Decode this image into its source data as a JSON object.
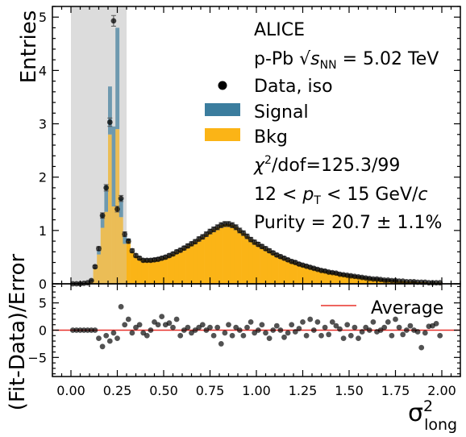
{
  "chart_data": [
    {
      "type": "bar",
      "panel": "main",
      "ylabel": "Entries",
      "xlim": [
        -0.1,
        2.1
      ],
      "ylim": [
        0,
        5.2
      ],
      "xticks": [
        "0.00",
        "0.25",
        "0.50",
        "0.75",
        "1.00",
        "1.25",
        "1.50",
        "1.75",
        "2.00"
      ],
      "yticks": [
        "0",
        "1",
        "2",
        "3",
        "4",
        "5"
      ],
      "shaded_region": [
        0.0,
        0.3
      ],
      "bin_width": 0.02,
      "bin_centers": [
        0.01,
        0.03,
        0.05,
        0.07,
        0.09,
        0.11,
        0.13,
        0.15,
        0.17,
        0.19,
        0.21,
        0.23,
        0.25,
        0.27,
        0.29,
        0.31,
        0.33,
        0.35,
        0.37,
        0.39,
        0.41,
        0.43,
        0.45,
        0.47,
        0.49,
        0.51,
        0.53,
        0.55,
        0.57,
        0.59,
        0.61,
        0.63,
        0.65,
        0.67,
        0.69,
        0.71,
        0.73,
        0.75,
        0.77,
        0.79,
        0.81,
        0.83,
        0.85,
        0.87,
        0.89,
        0.91,
        0.93,
        0.95,
        0.97,
        0.99,
        1.01,
        1.03,
        1.05,
        1.07,
        1.09,
        1.11,
        1.13,
        1.15,
        1.17,
        1.19,
        1.21,
        1.23,
        1.25,
        1.27,
        1.29,
        1.31,
        1.33,
        1.35,
        1.37,
        1.39,
        1.41,
        1.43,
        1.45,
        1.47,
        1.49,
        1.51,
        1.53,
        1.55,
        1.57,
        1.59,
        1.61,
        1.63,
        1.65,
        1.67,
        1.69,
        1.71,
        1.73,
        1.75,
        1.77,
        1.79,
        1.81,
        1.83,
        1.85,
        1.87,
        1.89,
        1.91,
        1.93,
        1.95,
        1.97,
        1.99
      ],
      "series": [
        {
          "name": "Signal",
          "color": "#3b7d9e",
          "stack": "top",
          "values": [
            0,
            0,
            0,
            0,
            0,
            0,
            0.02,
            0.08,
            0.25,
            0.5,
            0.9,
            1.5,
            1.9,
            0.35,
            0.15,
            0.05,
            0.01,
            0,
            0,
            0,
            0,
            0,
            0,
            0,
            0,
            0,
            0,
            0,
            0,
            0,
            0,
            0,
            0,
            0,
            0,
            0,
            0,
            0,
            0,
            0,
            0,
            0,
            0,
            0,
            0,
            0,
            0,
            0,
            0,
            0,
            0,
            0,
            0,
            0,
            0,
            0,
            0,
            0,
            0,
            0,
            0,
            0,
            0,
            0,
            0,
            0,
            0,
            0,
            0,
            0,
            0,
            0,
            0,
            0,
            0,
            0,
            0,
            0,
            0,
            0,
            0,
            0,
            0,
            0,
            0,
            0,
            0,
            0,
            0,
            0,
            0,
            0,
            0,
            0,
            0,
            0,
            0,
            0,
            0,
            0
          ]
        },
        {
          "name": "Bkg",
          "color": "#fbb416",
          "stack": "bottom",
          "values": [
            0,
            0,
            0,
            0.01,
            0.02,
            0.05,
            0.28,
            0.55,
            1.05,
            1.35,
            2.8,
            1.45,
            2.9,
            1.25,
            0.75,
            0.8,
            0.6,
            0.52,
            0.48,
            0.45,
            0.44,
            0.44,
            0.45,
            0.46,
            0.48,
            0.5,
            0.53,
            0.56,
            0.6,
            0.63,
            0.67,
            0.71,
            0.75,
            0.79,
            0.84,
            0.88,
            0.93,
            0.98,
            1.02,
            1.06,
            1.1,
            1.12,
            1.12,
            1.1,
            1.06,
            1.0,
            0.95,
            0.89,
            0.83,
            0.78,
            0.74,
            0.7,
            0.66,
            0.62,
            0.58,
            0.54,
            0.51,
            0.48,
            0.45,
            0.42,
            0.4,
            0.37,
            0.35,
            0.33,
            0.31,
            0.29,
            0.27,
            0.25,
            0.24,
            0.22,
            0.21,
            0.2,
            0.18,
            0.17,
            0.16,
            0.15,
            0.14,
            0.13,
            0.12,
            0.11,
            0.1,
            0.09,
            0.09,
            0.08,
            0.07,
            0.07,
            0.06,
            0.06,
            0.05,
            0.05,
            0.04,
            0.04,
            0.04,
            0.03,
            0.03,
            0.03,
            0.02,
            0.02,
            0.02,
            0.02
          ]
        },
        {
          "name": "Data, iso",
          "type": "scatter",
          "color": "#000000",
          "values": [
            0,
            0,
            0,
            0.01,
            0.02,
            0.06,
            0.32,
            0.66,
            1.28,
            1.8,
            3.03,
            4.93,
            1.4,
            1.6,
            0.93,
            0.8,
            0.62,
            0.53,
            0.48,
            0.44,
            0.44,
            0.44,
            0.45,
            0.46,
            0.48,
            0.5,
            0.53,
            0.56,
            0.6,
            0.63,
            0.67,
            0.71,
            0.75,
            0.79,
            0.84,
            0.88,
            0.93,
            0.98,
            1.02,
            1.06,
            1.1,
            1.12,
            1.12,
            1.1,
            1.06,
            1.0,
            0.95,
            0.89,
            0.83,
            0.78,
            0.74,
            0.7,
            0.66,
            0.62,
            0.58,
            0.54,
            0.51,
            0.48,
            0.45,
            0.42,
            0.4,
            0.37,
            0.35,
            0.33,
            0.31,
            0.29,
            0.27,
            0.25,
            0.24,
            0.22,
            0.21,
            0.2,
            0.18,
            0.17,
            0.16,
            0.15,
            0.14,
            0.13,
            0.12,
            0.11,
            0.1,
            0.09,
            0.09,
            0.08,
            0.07,
            0.07,
            0.06,
            0.06,
            0.05,
            0.05,
            0.04,
            0.04,
            0.04,
            0.03,
            0.03,
            0.03,
            0.02,
            0.02,
            0.02,
            0.02
          ]
        }
      ],
      "annotations": [
        "ALICE",
        "p-Pb √s_NN = 5.02 TeV",
        "χ²/dof=125.3/99",
        "12 < p_T < 15 GeV/c",
        "Purity = 20.7 ± 1.1%"
      ],
      "legend": [
        "Data, iso",
        "Signal",
        "Bkg"
      ],
      "legend_position": "top-right"
    },
    {
      "type": "scatter",
      "panel": "ratio",
      "ylabel": "(Fit-Data)/Error",
      "xlabel": "σ²long",
      "xlim": [
        -0.1,
        2.1
      ],
      "ylim": [
        -8.5,
        8.5
      ],
      "xticks": [
        "0.00",
        "0.25",
        "0.50",
        "0.75",
        "1.00",
        "1.25",
        "1.50",
        "1.75",
        "2.00"
      ],
      "yticks": [
        "−5",
        "0",
        "5"
      ],
      "average_line": {
        "name": "Average",
        "y": 0,
        "color": "#e8302a"
      },
      "x": [
        0.01,
        0.03,
        0.05,
        0.07,
        0.09,
        0.11,
        0.13,
        0.15,
        0.17,
        0.19,
        0.21,
        0.23,
        0.25,
        0.27,
        0.29,
        0.31,
        0.33,
        0.35,
        0.37,
        0.39,
        0.41,
        0.43,
        0.45,
        0.47,
        0.49,
        0.51,
        0.53,
        0.55,
        0.57,
        0.59,
        0.61,
        0.63,
        0.65,
        0.67,
        0.69,
        0.71,
        0.73,
        0.75,
        0.77,
        0.79,
        0.81,
        0.83,
        0.85,
        0.87,
        0.89,
        0.91,
        0.93,
        0.95,
        0.97,
        0.99,
        1.01,
        1.03,
        1.05,
        1.07,
        1.09,
        1.11,
        1.13,
        1.15,
        1.17,
        1.19,
        1.21,
        1.23,
        1.25,
        1.27,
        1.29,
        1.31,
        1.33,
        1.35,
        1.37,
        1.39,
        1.41,
        1.43,
        1.45,
        1.47,
        1.49,
        1.51,
        1.53,
        1.55,
        1.57,
        1.59,
        1.61,
        1.63,
        1.65,
        1.67,
        1.69,
        1.71,
        1.73,
        1.75,
        1.77,
        1.79,
        1.81,
        1.83,
        1.85,
        1.87,
        1.89,
        1.91,
        1.93,
        1.95,
        1.97,
        1.99
      ],
      "values": [
        0,
        0,
        0,
        0,
        0,
        0,
        0,
        -1.5,
        -3,
        -1,
        -2,
        -0.5,
        -1.5,
        4.3,
        1,
        2,
        -0.5,
        0.5,
        1,
        -0.5,
        -1,
        0,
        1.5,
        1,
        2.5,
        1,
        1.3,
        0.5,
        2,
        -1,
        0,
        0.5,
        -0.5,
        0,
        0.5,
        1,
        0,
        0.5,
        -1,
        0.5,
        -2.5,
        -0.5,
        1,
        -1,
        0.5,
        0,
        -1,
        0.5,
        1.5,
        -0.5,
        0,
        1,
        -0.5,
        -1.5,
        0,
        0.8,
        0,
        -1.3,
        -0.5,
        1,
        -0.3,
        0.3,
        1.5,
        -1,
        2,
        0,
        1.5,
        -1,
        0.5,
        -0.8,
        1.5,
        0.8,
        0.2,
        -1.5,
        1,
        -1,
        0.5,
        -1.5,
        -0.3,
        0.5,
        0,
        1.5,
        -0.3,
        0,
        0.5,
        1.5,
        -1,
        2,
        0.5,
        -0.8,
        0,
        0.8,
        0,
        -0.3,
        -3.2,
        -0.5,
        0.7,
        0.8,
        1.2,
        -1
      ]
    }
  ]
}
